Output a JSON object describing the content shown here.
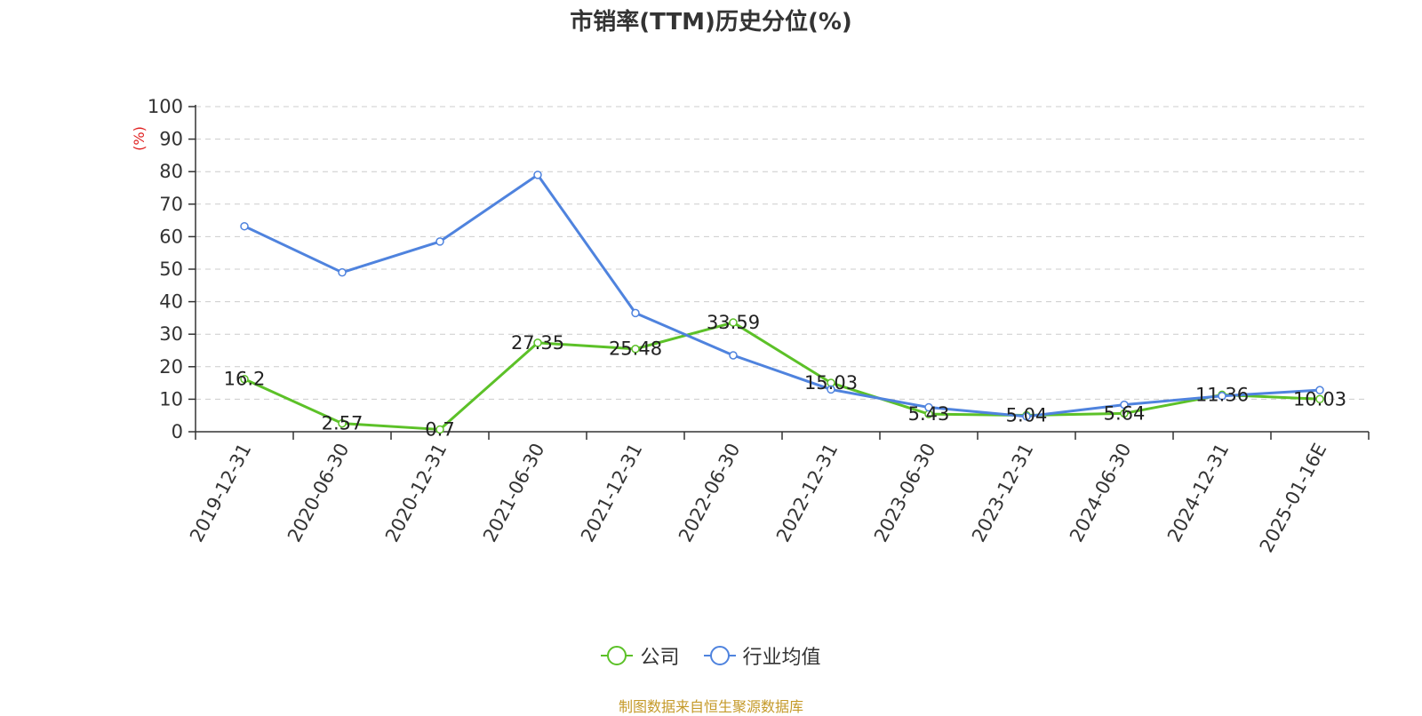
{
  "chart_data": {
    "type": "line",
    "title": "市销率(TTM)历史分位(%)",
    "ylabel": "(%)",
    "ylim": [
      0,
      100
    ],
    "yticks": [
      0,
      10,
      20,
      30,
      40,
      50,
      60,
      70,
      80,
      90,
      100
    ],
    "grid": true,
    "legend_position": "bottom",
    "categories": [
      "2019-12-31",
      "2020-06-30",
      "2020-12-31",
      "2021-06-30",
      "2021-12-31",
      "2022-06-30",
      "2022-12-31",
      "2023-06-30",
      "2023-12-31",
      "2024-06-30",
      "2024-12-31",
      "2025-01-16E"
    ],
    "series": [
      {
        "name": "公司",
        "color": "#5cc128",
        "values": [
          16.2,
          2.57,
          0.7,
          27.35,
          25.48,
          33.59,
          15.03,
          5.43,
          5.04,
          5.64,
          11.36,
          10.03
        ],
        "labels": [
          "16.2",
          "2.57",
          "0.7",
          "27.35",
          "25.48",
          "33.59",
          "15.03",
          "5.43",
          "5.04",
          "5.64",
          "11.36",
          "10.03"
        ]
      },
      {
        "name": "行业均值",
        "color": "#4f83de",
        "values": [
          63.2,
          49.0,
          58.5,
          79.0,
          36.5,
          23.5,
          13.0,
          7.5,
          4.7,
          8.3,
          11.0,
          12.8
        ]
      }
    ]
  },
  "source_note": "制图数据来自恒生聚源数据库"
}
